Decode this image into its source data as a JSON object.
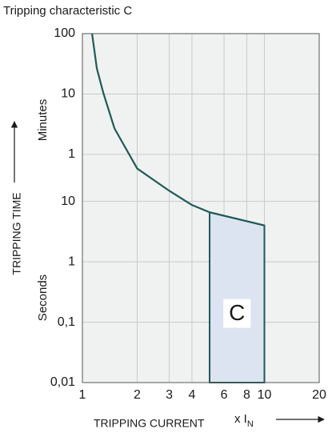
{
  "chart_data": {
    "type": "line",
    "title": "Tripping characteristic C",
    "y_label": "TRIPPING TIME",
    "y_upper_unit": "Minutes",
    "y_lower_unit": "Seconds",
    "x_label": "TRIPPING CURRENT",
    "x_unit": {
      "text": "x I",
      "subscript": "N"
    },
    "log_x": true,
    "log_y": true,
    "grid": true,
    "xlim": [
      1,
      20
    ],
    "xticks": [
      1,
      2,
      3,
      4,
      6,
      8,
      10,
      20
    ],
    "ylim": [
      0.01,
      6000
    ],
    "yticks": [
      {
        "value": 0.01,
        "label": "0,01"
      },
      {
        "value": 0.1,
        "label": "0,1"
      },
      1,
      10,
      {
        "value": 60,
        "label": "1"
      },
      {
        "value": 600,
        "label": "10"
      },
      {
        "value": 6000,
        "label": "100"
      }
    ],
    "series": [
      {
        "color": "#1f5a58",
        "x": [
          1.13,
          1.2,
          1.3,
          1.5,
          2,
          3,
          4,
          5,
          10
        ],
        "values": [
          6000,
          1600,
          640,
          162,
          35,
          15,
          8.7,
          6.6,
          4
        ]
      }
    ],
    "region": {
      "label": "C",
      "fill": "#dce4f2",
      "stroke": "#1f5a58",
      "x": [
        5,
        10
      ],
      "upper": [
        6.6,
        4
      ]
    }
  }
}
